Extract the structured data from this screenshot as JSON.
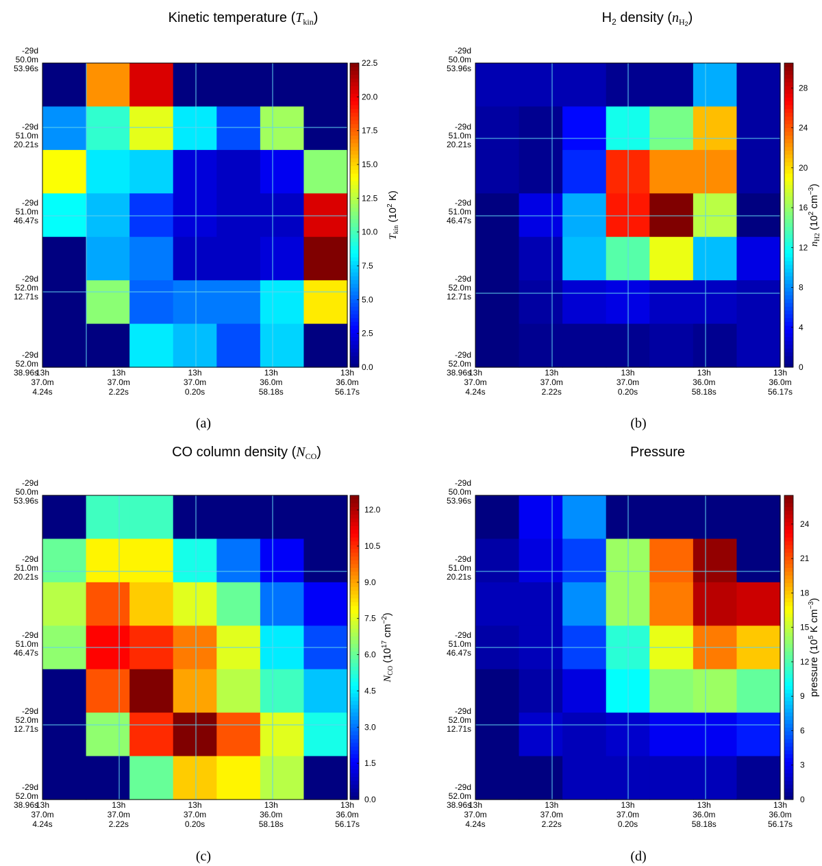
{
  "x_ticks": [
    [
      "13h",
      "37.0m",
      "4.24s"
    ],
    [
      "13h",
      "37.0m",
      "2.22s"
    ],
    [
      "13h",
      "37.0m",
      "0.20s"
    ],
    [
      "13h",
      "36.0m",
      "58.18s"
    ],
    [
      "13h",
      "36.0m",
      "56.17s"
    ]
  ],
  "y_ticks": [
    [
      "-29d",
      "50.0m",
      "53.96s"
    ],
    [
      "-29d",
      "51.0m",
      "20.21s"
    ],
    [
      "-29d",
      "51.0m",
      "46.47s"
    ],
    [
      "-29d",
      "52.0m",
      "12.71s"
    ],
    [
      "-29d",
      "52.0m",
      "38.96s"
    ]
  ],
  "colormap": "jet",
  "grid_color": "#5fd3ee",
  "chart_data": [
    {
      "type": "heatmap",
      "panel_label": "(a)",
      "title": "Kinetic temperature (T_kin)",
      "colorbar_label": "T_kin (10^2 K)",
      "colorbar_ticks": [
        "0.0",
        "2.5",
        "5.0",
        "7.5",
        "10.0",
        "12.5",
        "15.0",
        "17.5",
        "20.0",
        "22.5"
      ],
      "vmin": 0,
      "vmax": 22.5,
      "rows": 7,
      "cols": 7,
      "values": [
        [
          0,
          16.5,
          20.5,
          0,
          0,
          0,
          0
        ],
        [
          6,
          9.5,
          13.5,
          8,
          4.5,
          12,
          0
        ],
        [
          14,
          8,
          7.5,
          2,
          1.5,
          2.5,
          11.5
        ],
        [
          8.5,
          7,
          4,
          2,
          1.5,
          1.5,
          20.5
        ],
        [
          0,
          6.5,
          5.5,
          1.5,
          1.5,
          2,
          22.5
        ],
        [
          0,
          11.5,
          5,
          5.5,
          5.5,
          8,
          14.5
        ],
        [
          0,
          0,
          8,
          7,
          4.5,
          7.5,
          0
        ]
      ]
    },
    {
      "type": "heatmap",
      "panel_label": "(b)",
      "title": "H2 density (n_H2)",
      "colorbar_label": "n_H2 (10^2 cm^-3)",
      "colorbar_ticks": [
        "0",
        "4",
        "8",
        "12",
        "16",
        "20",
        "24",
        "28"
      ],
      "vmin": 0,
      "vmax": 30.5,
      "rows": 7,
      "cols": 7,
      "values": [
        [
          1.5,
          1.5,
          1.5,
          0.5,
          0.5,
          9,
          1
        ],
        [
          1,
          0.5,
          4,
          12,
          15,
          21,
          1
        ],
        [
          1,
          0.5,
          5,
          25.5,
          22.5,
          22.5,
          1
        ],
        [
          0,
          3,
          9,
          26,
          30.5,
          17,
          0
        ],
        [
          0,
          1.5,
          9.5,
          14,
          18.5,
          9.5,
          3
        ],
        [
          0,
          1,
          2.5,
          3,
          2,
          2,
          1.5
        ],
        [
          0,
          0.5,
          0.5,
          0.5,
          1,
          0.5,
          1.5
        ]
      ]
    },
    {
      "type": "heatmap",
      "panel_label": "(c)",
      "title": "CO column density (N_CO)",
      "colorbar_label": "N_CO (10^17 cm^-2)",
      "colorbar_ticks": [
        "0.0",
        "1.5",
        "3.0",
        "4.5",
        "6.0",
        "7.5",
        "9.0",
        "10.5",
        "12.0"
      ],
      "vmin": 0,
      "vmax": 12.6,
      "rows": 7,
      "cols": 7,
      "values": [
        [
          0,
          5.5,
          5.5,
          0,
          0,
          0,
          0
        ],
        [
          6,
          8,
          8,
          5,
          3,
          1.5,
          0
        ],
        [
          7,
          10,
          8.5,
          7.5,
          6,
          3,
          1.5
        ],
        [
          6.5,
          11,
          10.5,
          9.5,
          7.5,
          4.5,
          2.5
        ],
        [
          0,
          10,
          12.6,
          9,
          7,
          5.5,
          4
        ],
        [
          0,
          6.5,
          10.5,
          12.6,
          10,
          7.5,
          5
        ],
        [
          0,
          0,
          6,
          8.5,
          8,
          7,
          0
        ]
      ]
    },
    {
      "type": "heatmap",
      "panel_label": "(d)",
      "title": "Pressure",
      "colorbar_label": "pressure (10^5 K cm^-3)",
      "colorbar_ticks": [
        "0",
        "3",
        "6",
        "9",
        "12",
        "15",
        "18",
        "21",
        "24"
      ],
      "vmin": 0,
      "vmax": 26.5,
      "rows": 7,
      "cols": 7,
      "values": [
        [
          0,
          3,
          7,
          0,
          0,
          0,
          0
        ],
        [
          1,
          2.5,
          5,
          14,
          20.5,
          26,
          0
        ],
        [
          1.5,
          1.5,
          7,
          14,
          20,
          25,
          24.5
        ],
        [
          1,
          1.5,
          5,
          11,
          16,
          20,
          18
        ],
        [
          0,
          1,
          2.5,
          10,
          13.5,
          14,
          12.5
        ],
        [
          0,
          2,
          1.5,
          2,
          3,
          3,
          4
        ],
        [
          0,
          0,
          1.5,
          1.5,
          1.5,
          1.5,
          0.5
        ]
      ]
    }
  ]
}
